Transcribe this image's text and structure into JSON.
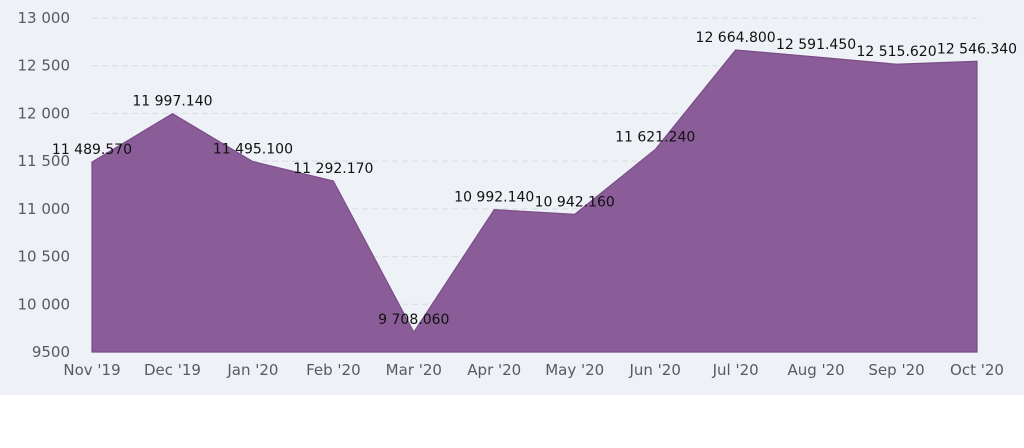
{
  "chart_data": {
    "type": "area",
    "title": "",
    "xlabel": "",
    "ylabel": "",
    "categories": [
      "Nov '19",
      "Dec '19",
      "Jan '20",
      "Feb '20",
      "Mar '20",
      "Apr '20",
      "May '20",
      "Jun '20",
      "Jul '20",
      "Aug '20",
      "Sep '20",
      "Oct '20"
    ],
    "series": [
      {
        "values": [
          11489.57,
          11997.14,
          11495.1,
          11292.17,
          9708.06,
          10992.14,
          10942.16,
          11621.24,
          12664.8,
          12591.45,
          12515.62,
          12546.34
        ],
        "labels": [
          "11 489.570",
          "11 997.140",
          "11 495.100",
          "11 292.170",
          "9 708.060",
          "10 992.140",
          "10 942.160",
          "11 621.240",
          "12 664.800",
          "12 591.450",
          "12 515.620",
          "12 546.340"
        ],
        "color": "#8a5c98"
      }
    ],
    "ylim": [
      9500,
      13000
    ],
    "yticks": [
      9500,
      10000,
      10500,
      11000,
      11500,
      12000,
      12500,
      13000
    ],
    "ytick_labels": [
      "9500",
      "10 000",
      "10 500",
      "11 000",
      "11 500",
      "12 000",
      "12 500",
      "13 000"
    ],
    "grid": true,
    "legend": "none",
    "colors": {
      "background": "#eef1f6",
      "area": "#8a5c98",
      "grid": "#d8dbe3",
      "tick_text": "#555a66"
    }
  }
}
